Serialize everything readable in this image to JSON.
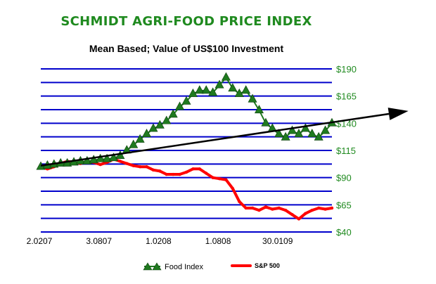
{
  "chart_data": {
    "type": "line",
    "title": "SCHMIDT AGRI-FOOD PRICE INDEX",
    "subtitle": "Mean Based; Value of US$100 Investment",
    "colors": {
      "title": "#1f8a1f",
      "grid": "#0000cc",
      "food": "#1f7a1f",
      "sp500": "#ff0000",
      "ytick": "#1f8a1f",
      "trend": "#000000"
    },
    "ylim": [
      40,
      190
    ],
    "yticks": [
      {
        "value": 190,
        "label": "$190"
      },
      {
        "value": 165,
        "label": "$165"
      },
      {
        "value": 140,
        "label": "$140"
      },
      {
        "value": 115,
        "label": "$115"
      },
      {
        "value": 90,
        "label": "$90"
      },
      {
        "value": 65,
        "label": "$65"
      },
      {
        "value": 40,
        "label": "$40"
      }
    ],
    "gridlines": [
      190,
      177.5,
      165,
      152.5,
      140,
      127.5,
      115,
      102.5,
      90,
      77.5,
      65,
      52.5,
      40
    ],
    "xlim": [
      0,
      44
    ],
    "xticks": [
      {
        "x": 0,
        "label": "2.0207"
      },
      {
        "x": 9,
        "label": "3.0807"
      },
      {
        "x": 18,
        "label": "1.0208"
      },
      {
        "x": 27,
        "label": "1.0808"
      },
      {
        "x": 36,
        "label": "30.0109"
      }
    ],
    "series": [
      {
        "name": "Food Index",
        "marker": "triangle",
        "points": [
          [
            0,
            100
          ],
          [
            1,
            101
          ],
          [
            2,
            102
          ],
          [
            3,
            103
          ],
          [
            4,
            103
          ],
          [
            5,
            104
          ],
          [
            6,
            105
          ],
          [
            7,
            105
          ],
          [
            8,
            106
          ],
          [
            9,
            107
          ],
          [
            10,
            107
          ],
          [
            11,
            108
          ],
          [
            12,
            110
          ],
          [
            13,
            115
          ],
          [
            14,
            120
          ],
          [
            15,
            125
          ],
          [
            16,
            130
          ],
          [
            17,
            135
          ],
          [
            18,
            138
          ],
          [
            19,
            142
          ],
          [
            20,
            148
          ],
          [
            21,
            155
          ],
          [
            22,
            160
          ],
          [
            23,
            167
          ],
          [
            24,
            170
          ],
          [
            25,
            170
          ],
          [
            26,
            168
          ],
          [
            27,
            175
          ],
          [
            28,
            182
          ],
          [
            29,
            172
          ],
          [
            30,
            167
          ],
          [
            31,
            170
          ],
          [
            32,
            162
          ],
          [
            33,
            152
          ],
          [
            34,
            140
          ],
          [
            35,
            135
          ],
          [
            36,
            130
          ],
          [
            37,
            127
          ],
          [
            38,
            133
          ],
          [
            39,
            130
          ],
          [
            40,
            135
          ],
          [
            41,
            130
          ],
          [
            42,
            127
          ],
          [
            43,
            133
          ],
          [
            44,
            140
          ]
        ]
      },
      {
        "name": "S&P 500",
        "marker": "line",
        "points": [
          [
            0,
            100
          ],
          [
            1,
            98
          ],
          [
            2,
            100
          ],
          [
            3,
            103
          ],
          [
            4,
            105
          ],
          [
            5,
            104
          ],
          [
            6,
            103
          ],
          [
            7,
            105
          ],
          [
            8,
            104
          ],
          [
            9,
            102
          ],
          [
            10,
            104
          ],
          [
            11,
            107
          ],
          [
            12,
            105
          ],
          [
            13,
            103
          ],
          [
            14,
            101
          ],
          [
            15,
            100
          ],
          [
            16,
            100
          ],
          [
            17,
            97
          ],
          [
            18,
            96
          ],
          [
            19,
            93
          ],
          [
            20,
            93
          ],
          [
            21,
            93
          ],
          [
            22,
            95
          ],
          [
            23,
            98
          ],
          [
            24,
            98
          ],
          [
            25,
            94
          ],
          [
            26,
            90
          ],
          [
            27,
            89
          ],
          [
            28,
            88
          ],
          [
            29,
            80
          ],
          [
            30,
            68
          ],
          [
            31,
            62
          ],
          [
            32,
            62
          ],
          [
            33,
            60
          ],
          [
            34,
            63
          ],
          [
            35,
            61
          ],
          [
            36,
            62
          ],
          [
            37,
            60
          ],
          [
            38,
            56
          ],
          [
            39,
            52
          ],
          [
            40,
            57
          ],
          [
            41,
            60
          ],
          [
            42,
            62
          ],
          [
            43,
            61
          ],
          [
            44,
            62
          ]
        ]
      }
    ],
    "trend_line": {
      "x_start": 0,
      "y_start": 101,
      "x_end": 44,
      "y_end": 148
    },
    "legend": {
      "position": "bottom",
      "items": [
        {
          "label": "Food Index",
          "series": "food"
        },
        {
          "label": "S&P 500",
          "series": "sp500"
        }
      ]
    }
  }
}
